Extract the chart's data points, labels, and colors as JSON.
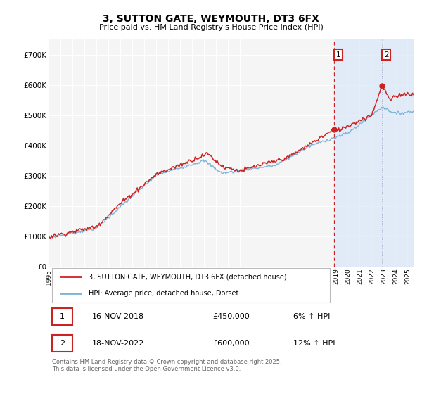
{
  "title": "3, SUTTON GATE, WEYMOUTH, DT3 6FX",
  "subtitle": "Price paid vs. HM Land Registry's House Price Index (HPI)",
  "ytick_labels": [
    "£0",
    "£100K",
    "£200K",
    "£300K",
    "£400K",
    "£500K",
    "£600K",
    "£700K"
  ],
  "yticks": [
    0,
    100000,
    200000,
    300000,
    400000,
    500000,
    600000,
    700000
  ],
  "ylim": [
    0,
    750000
  ],
  "xlim_start": 1995,
  "xlim_end": 2025.5,
  "sale1_x": 2018.875,
  "sale2_x": 2022.875,
  "sale1_price": 450000,
  "sale2_price": 600000,
  "sale1_date_label": "16-NOV-2018",
  "sale1_price_label": "£450,000",
  "sale1_hpi_label": "6% ↑ HPI",
  "sale2_date_label": "18-NOV-2022",
  "sale2_price_label": "£600,000",
  "sale2_hpi_label": "12% ↑ HPI",
  "legend1": "3, SUTTON GATE, WEYMOUTH, DT3 6FX (detached house)",
  "legend2": "HPI: Average price, detached house, Dorset",
  "footer": "Contains HM Land Registry data © Crown copyright and database right 2025.\nThis data is licensed under the Open Government Licence v3.0.",
  "line1_color": "#cc2222",
  "line2_color": "#7bb3d9",
  "bg_color": "#ffffff",
  "plot_bg_color": "#f5f5f5",
  "grid_color": "#ffffff",
  "vline1_color": "#cc2222",
  "vline2_color": "#aaaacc",
  "shade_color": "#d8e8f8",
  "annot_box_color": "#cc2222",
  "marker_color": "#cc2222"
}
